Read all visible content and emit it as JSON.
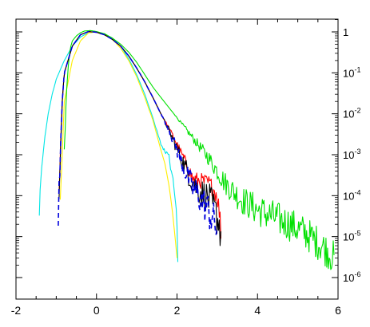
{
  "chart_data": {
    "type": "line",
    "title": "",
    "xlabel": "",
    "ylabel": "",
    "xlim": [
      -2,
      6
    ],
    "ylim": [
      1e-06,
      2
    ],
    "yscale": "log",
    "yaxis_side": "right",
    "grid": false,
    "legend": "none",
    "x_ticks": [
      {
        "value": -2,
        "label": "-2"
      },
      {
        "value": 0,
        "label": "0"
      },
      {
        "value": 2,
        "label": "2"
      },
      {
        "value": 4,
        "label": "4"
      },
      {
        "value": 6,
        "label": "6"
      }
    ],
    "y_ticks": [
      {
        "value": 1,
        "base": "1",
        "exp": ""
      },
      {
        "value": 0.1,
        "base": "10",
        "exp": "-1"
      },
      {
        "value": 0.01,
        "base": "10",
        "exp": "-2"
      },
      {
        "value": 0.001,
        "base": "10",
        "exp": "-3"
      },
      {
        "value": 0.0001,
        "base": "10",
        "exp": "-4"
      },
      {
        "value": 1e-05,
        "base": "10",
        "exp": "-5"
      },
      {
        "value": 1e-06,
        "base": "10",
        "exp": "-6"
      }
    ],
    "series": [
      {
        "color": "#00e5e5",
        "dash": false,
        "noise": 0.02,
        "x": [
          -1.42,
          -1.4,
          -1.3,
          -1.2,
          -1.1,
          -1.0,
          -0.8,
          -0.6,
          -0.4,
          -0.2,
          0.0,
          0.2,
          0.4,
          0.6,
          0.8,
          1.0,
          1.2,
          1.4,
          1.6,
          1.7,
          1.8,
          1.85,
          1.9,
          1.95,
          2.0,
          2.02
        ],
        "y": [
          3e-05,
          0.00015,
          0.002,
          0.01,
          0.03,
          0.07,
          0.2,
          0.45,
          0.75,
          0.95,
          1.0,
          0.9,
          0.7,
          0.45,
          0.22,
          0.09,
          0.03,
          0.008,
          0.0018,
          0.0012,
          0.0011,
          0.0004,
          0.00025,
          0.0001,
          2e-05,
          3e-06
        ]
      },
      {
        "color": "#ffee00",
        "dash": false,
        "noise": 0.0,
        "x": [
          -0.9,
          -0.85,
          -0.8,
          -0.6,
          -0.4,
          -0.2,
          0.0,
          0.2,
          0.4,
          0.6,
          0.8,
          1.0,
          1.2,
          1.4,
          1.6,
          1.7,
          1.8,
          1.85,
          1.9,
          1.95,
          2.0
        ],
        "y": [
          8e-05,
          0.001,
          0.02,
          0.2,
          0.6,
          0.95,
          1.0,
          0.88,
          0.65,
          0.4,
          0.2,
          0.08,
          0.025,
          0.007,
          0.0013,
          0.0006,
          0.00018,
          8e-05,
          3e-05,
          1e-05,
          3e-06
        ]
      },
      {
        "color": "#00e000",
        "dash": false,
        "noise": 0.07,
        "x": [
          -0.8,
          -0.78,
          -0.75,
          -0.7,
          -0.65,
          -0.6,
          -0.5,
          -0.4,
          -0.3,
          -0.15,
          0.0,
          0.2,
          0.4,
          0.6,
          0.8,
          1.0,
          1.2,
          1.4,
          1.6,
          2.0,
          2.4,
          2.8,
          3.2,
          3.6,
          4.0,
          4.4,
          4.8,
          5.2,
          5.6,
          5.9
        ],
        "y": [
          0.001,
          0.004,
          0.03,
          0.15,
          0.4,
          0.6,
          0.8,
          0.95,
          1.05,
          1.08,
          1.02,
          0.9,
          0.7,
          0.5,
          0.32,
          0.18,
          0.09,
          0.045,
          0.025,
          0.008,
          0.0025,
          0.0008,
          0.0002,
          8e-05,
          4.5e-05,
          3e-05,
          2e-05,
          1.2e-05,
          6e-06,
          3e-06
        ]
      },
      {
        "color": "#ff0000",
        "dash": false,
        "noise": 0.05,
        "x": [
          -0.93,
          -0.9,
          -0.85,
          -0.8,
          -0.6,
          -0.4,
          -0.2,
          0.0,
          0.2,
          0.4,
          0.6,
          0.8,
          1.0,
          1.2,
          1.4,
          1.6,
          1.8,
          2.0,
          2.2,
          2.4,
          2.6,
          2.8,
          2.9,
          3.0,
          3.05,
          3.1
        ],
        "y": [
          8e-05,
          0.001,
          0.02,
          0.1,
          0.45,
          0.85,
          1.02,
          0.98,
          0.85,
          0.65,
          0.45,
          0.26,
          0.13,
          0.06,
          0.025,
          0.01,
          0.0045,
          0.0018,
          0.0007,
          0.00025,
          0.00023,
          0.0002,
          0.00015,
          0.0001,
          4e-05,
          1.2e-05
        ]
      },
      {
        "color": "#000000",
        "dash": false,
        "noise": 0.08,
        "x": [
          -0.93,
          -0.9,
          -0.85,
          -0.8,
          -0.6,
          -0.4,
          -0.2,
          0.0,
          0.2,
          0.4,
          0.6,
          0.8,
          1.0,
          1.2,
          1.4,
          1.6,
          1.8,
          2.0,
          2.2,
          2.4,
          2.6,
          2.8,
          2.9,
          3.0,
          3.05,
          3.1
        ],
        "y": [
          8e-05,
          0.001,
          0.02,
          0.1,
          0.45,
          0.85,
          1.02,
          0.98,
          0.85,
          0.65,
          0.45,
          0.26,
          0.13,
          0.06,
          0.025,
          0.01,
          0.004,
          0.0014,
          0.0005,
          0.0002,
          0.00012,
          8e-05,
          5e-05,
          3e-05,
          2e-05,
          1e-05
        ]
      },
      {
        "color": "#0000dd",
        "dash": true,
        "noise": 0.08,
        "x": [
          -0.95,
          -0.93,
          -0.9,
          -0.85,
          -0.8,
          -0.6,
          -0.4,
          -0.2,
          0.0,
          0.2,
          0.4,
          0.6,
          0.8,
          1.0,
          1.2,
          1.4,
          1.6,
          1.8,
          2.0,
          2.2,
          2.4,
          2.6,
          2.8,
          2.9,
          3.0
        ],
        "y": [
          3e-05,
          0.0001,
          0.001,
          0.02,
          0.1,
          0.45,
          0.85,
          1.02,
          0.98,
          0.85,
          0.65,
          0.45,
          0.26,
          0.13,
          0.06,
          0.025,
          0.01,
          0.004,
          0.0013,
          0.0004,
          0.00015,
          8e-05,
          4e-05,
          2.5e-05,
          1.5e-05
        ]
      }
    ]
  }
}
